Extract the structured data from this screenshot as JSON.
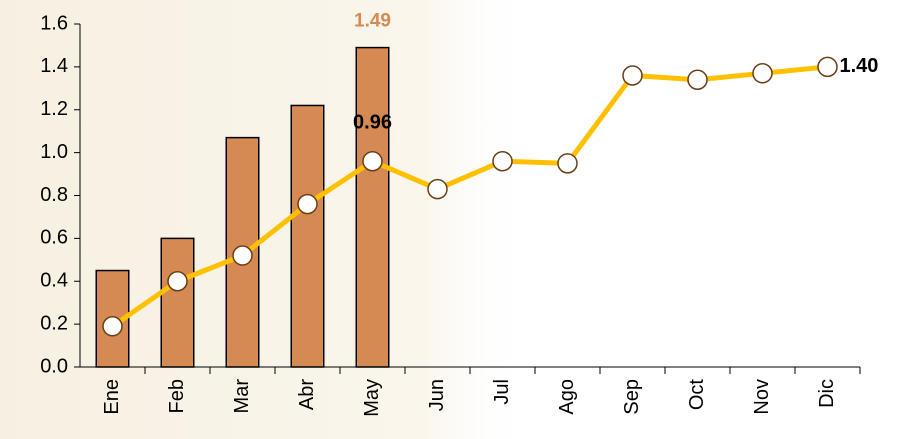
{
  "chart_data": {
    "type": "bar",
    "categories": [
      "Ene",
      "Feb",
      "Mar",
      "Abr",
      "May",
      "Jun",
      "Jul",
      "Ago",
      "Sep",
      "Oct",
      "Nov",
      "Dic"
    ],
    "series": [
      {
        "type": "bar",
        "color": "#d48a52",
        "values": [
          0.45,
          0.6,
          1.07,
          1.22,
          1.49,
          null,
          null,
          null,
          null,
          null,
          null,
          null
        ],
        "value_labels": [
          null,
          null,
          null,
          null,
          "1.49",
          null,
          null,
          null,
          null,
          null,
          null,
          null
        ]
      },
      {
        "type": "line",
        "color": "#ffc000",
        "values": [
          0.19,
          0.4,
          0.52,
          0.76,
          0.96,
          0.83,
          0.96,
          0.95,
          1.36,
          1.34,
          1.37,
          1.4
        ],
        "value_labels": [
          null,
          null,
          null,
          null,
          "0.96",
          null,
          null,
          null,
          null,
          null,
          null,
          "1.40"
        ]
      }
    ],
    "ylim": [
      0,
      1.6
    ],
    "yticks": [
      {
        "value": 0,
        "label": "0.0"
      },
      0.2,
      0.4,
      0.6,
      0.8,
      {
        "value": 1,
        "label": "1.0"
      },
      1.2,
      1.4,
      1.6
    ],
    "grid": false
  }
}
